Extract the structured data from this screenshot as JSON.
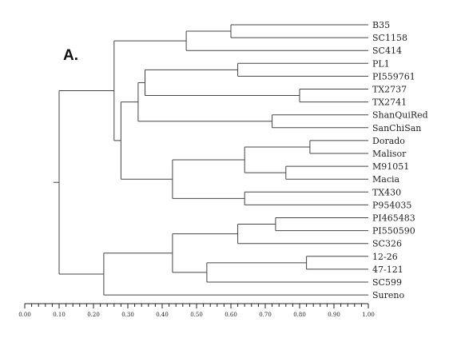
{
  "panel_label": "A.",
  "leaves": [
    "B35",
    "SC1158",
    "SC414",
    "PL1",
    "PI559761",
    "TX2737",
    "TX2741",
    "ShanQuiRed",
    "SanChiSan",
    "Dorado",
    "Malisor",
    "M91051",
    "Macia",
    "TX430",
    "P954035",
    "PI465483",
    "PI550590",
    "SC326",
    "12-26",
    "47-121",
    "SC599",
    "Sureno"
  ],
  "axis": {
    "min": 0,
    "max": 1,
    "ticks": [
      0,
      0.1,
      0.2,
      0.3,
      0.4,
      0.5,
      0.6,
      0.7,
      0.8,
      0.9,
      1.0
    ],
    "tick_labels": [
      "0.00",
      "0.10",
      "0.20",
      "0.30",
      "0.40",
      "0.50",
      "0.60",
      "0.70",
      "0.80",
      "0.90",
      "1.00"
    ]
  },
  "merges": [
    {
      "id": "n1",
      "height": 0.6,
      "children": [
        "B35",
        "SC1158"
      ]
    },
    {
      "id": "n2",
      "height": 0.47,
      "children": [
        "n1",
        "SC414"
      ]
    },
    {
      "id": "n3",
      "height": 0.62,
      "children": [
        "PL1",
        "PI559761"
      ]
    },
    {
      "id": "n4",
      "height": 0.8,
      "children": [
        "TX2737",
        "TX2741"
      ]
    },
    {
      "id": "n5",
      "height": 0.35,
      "children": [
        "n3",
        "n4"
      ]
    },
    {
      "id": "n6",
      "height": 0.72,
      "children": [
        "ShanQuiRed",
        "SanChiSan"
      ]
    },
    {
      "id": "n7",
      "height": 0.33,
      "children": [
        "n5",
        "n6"
      ]
    },
    {
      "id": "n8",
      "height": 0.83,
      "children": [
        "Dorado",
        "Malisor"
      ]
    },
    {
      "id": "n9",
      "height": 0.76,
      "children": [
        "M91051",
        "Macia"
      ]
    },
    {
      "id": "n10",
      "height": 0.64,
      "children": [
        "n8",
        "n9"
      ]
    },
    {
      "id": "n11",
      "height": 0.64,
      "children": [
        "TX430",
        "P954035"
      ]
    },
    {
      "id": "n12",
      "height": 0.43,
      "children": [
        "n10",
        "n11"
      ]
    },
    {
      "id": "n13",
      "height": 0.28,
      "children": [
        "n7",
        "n12"
      ]
    },
    {
      "id": "n14",
      "height": 0.26,
      "children": [
        "n2",
        "n13"
      ]
    },
    {
      "id": "n15",
      "height": 0.73,
      "children": [
        "PI465483",
        "PI550590"
      ]
    },
    {
      "id": "n16",
      "height": 0.62,
      "children": [
        "n15",
        "SC326"
      ]
    },
    {
      "id": "n17",
      "height": 0.82,
      "children": [
        "12-26",
        "47-121"
      ]
    },
    {
      "id": "n18",
      "height": 0.53,
      "children": [
        "n17",
        "SC599"
      ]
    },
    {
      "id": "n19",
      "height": 0.43,
      "children": [
        "n16",
        "n18"
      ]
    },
    {
      "id": "n20",
      "height": 0.23,
      "children": [
        "n19",
        "Sureno"
      ]
    },
    {
      "id": "root",
      "height": 0.1,
      "children": [
        "n14",
        "n20"
      ]
    }
  ]
}
